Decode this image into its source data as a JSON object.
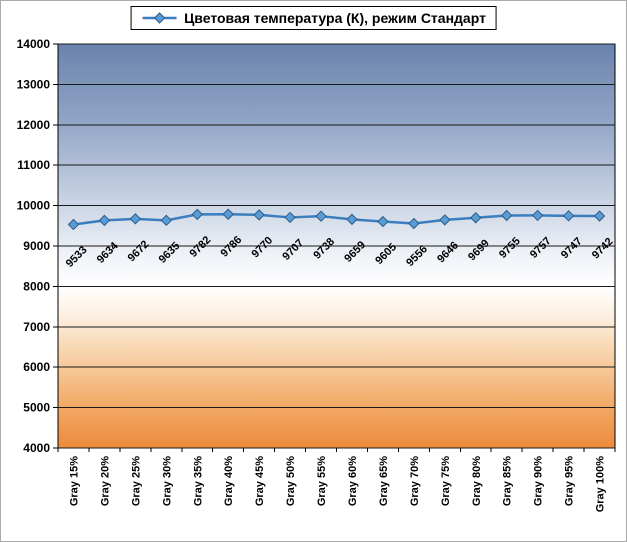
{
  "chart_data": {
    "type": "line",
    "title": "Цветовая температура (К), режим Стандарт",
    "series_name": "Цветовая температура (К), режим Стандарт",
    "categories": [
      "Gray 15%",
      "Gray 20%",
      "Gray 25%",
      "Gray 30%",
      "Gray 35%",
      "Gray 40%",
      "Gray 45%",
      "Gray 50%",
      "Gray 55%",
      "Gray 60%",
      "Gray 65%",
      "Gray 70%",
      "Gray 75%",
      "Gray 80%",
      "Gray 85%",
      "Gray 90%",
      "Gray 95%",
      "Gray 100%"
    ],
    "values": [
      9533,
      9634,
      9672,
      9635,
      9782,
      9786,
      9770,
      9707,
      9738,
      9659,
      9605,
      9556,
      9646,
      9699,
      9755,
      9757,
      9747,
      9742
    ],
    "data_labels": [
      "9533",
      "9634",
      "9672",
      "9635",
      "9782",
      "9786",
      "9770",
      "9707",
      "9738",
      "9659",
      "9605",
      "9556",
      "9646",
      "9699",
      "9755",
      "9757",
      "9747",
      "9742"
    ],
    "xlabel": "",
    "ylabel": "",
    "ylim": [
      4000,
      14000
    ],
    "ytick_step": 1000,
    "ytick_labels": [
      "4000",
      "5000",
      "6000",
      "7000",
      "8000",
      "9000",
      "10000",
      "11000",
      "12000",
      "13000",
      "14000"
    ],
    "grid": true,
    "legend_position": "top",
    "colors": {
      "line": "#3b7ec0",
      "marker_fill": "#5a9bd4",
      "marker_stroke": "#2a5d8c",
      "grid": "#1a1a1a",
      "axis": "#000000",
      "text": "#000000",
      "plot_gradient_stops": [
        {
          "offset": "0%",
          "color": "#6b83ad"
        },
        {
          "offset": "18%",
          "color": "#8ea3c4"
        },
        {
          "offset": "38%",
          "color": "#c6d1e2"
        },
        {
          "offset": "52%",
          "color": "#eef2f7"
        },
        {
          "offset": "60%",
          "color": "#ffffff"
        },
        {
          "offset": "68%",
          "color": "#fceedd"
        },
        {
          "offset": "78%",
          "color": "#f8cfa4"
        },
        {
          "offset": "90%",
          "color": "#f2a864"
        },
        {
          "offset": "100%",
          "color": "#ec8b3c"
        }
      ]
    }
  }
}
